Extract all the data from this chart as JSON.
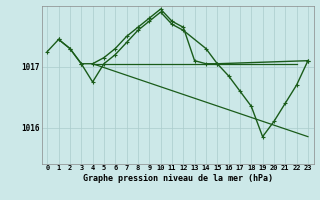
{
  "background_color": "#cce8e8",
  "grid_color": "#aacccc",
  "line_color": "#1a5c1a",
  "title": "Graphe pression niveau de la mer (hPa)",
  "ylabel_ticks": [
    1016,
    1017
  ],
  "xlim": [
    -0.5,
    23.5
  ],
  "ylim": [
    1015.4,
    1018.0
  ],
  "series": [
    {
      "x": [
        1,
        2,
        3,
        4,
        5,
        6,
        7,
        8,
        9,
        10,
        11,
        12,
        13,
        14,
        15,
        23
      ],
      "y": [
        1017.45,
        1017.3,
        1017.05,
        1017.05,
        1017.15,
        1017.3,
        1017.5,
        1017.65,
        1017.8,
        1017.95,
        1017.75,
        1017.65,
        1017.1,
        1017.05,
        1017.05,
        1017.1
      ],
      "marker": true,
      "lw": 1.0
    },
    {
      "x": [
        0,
        1,
        2,
        3,
        4,
        5,
        6,
        7,
        8,
        9,
        10,
        11,
        12,
        14,
        15,
        16,
        17,
        18,
        19,
        20,
        21,
        22,
        23
      ],
      "y": [
        1017.25,
        1017.45,
        1017.3,
        1017.05,
        1016.75,
        1017.05,
        1017.2,
        1017.4,
        1017.6,
        1017.75,
        1017.9,
        1017.7,
        1017.6,
        1017.3,
        1017.05,
        1016.85,
        1016.6,
        1016.35,
        1015.85,
        1016.1,
        1016.4,
        1016.7,
        1017.1
      ],
      "marker": true,
      "lw": 1.0
    },
    {
      "x": [
        4,
        23
      ],
      "y": [
        1017.05,
        1015.85
      ],
      "marker": false,
      "lw": 0.9
    },
    {
      "x": [
        4,
        5,
        6,
        7,
        8,
        9,
        10,
        11,
        12,
        13,
        14,
        15,
        16,
        17,
        18,
        19,
        22
      ],
      "y": [
        1017.05,
        1017.05,
        1017.05,
        1017.05,
        1017.05,
        1017.05,
        1017.05,
        1017.05,
        1017.05,
        1017.05,
        1017.05,
        1017.05,
        1017.05,
        1017.05,
        1017.05,
        1017.05,
        1017.05
      ],
      "marker": false,
      "lw": 0.9
    }
  ]
}
